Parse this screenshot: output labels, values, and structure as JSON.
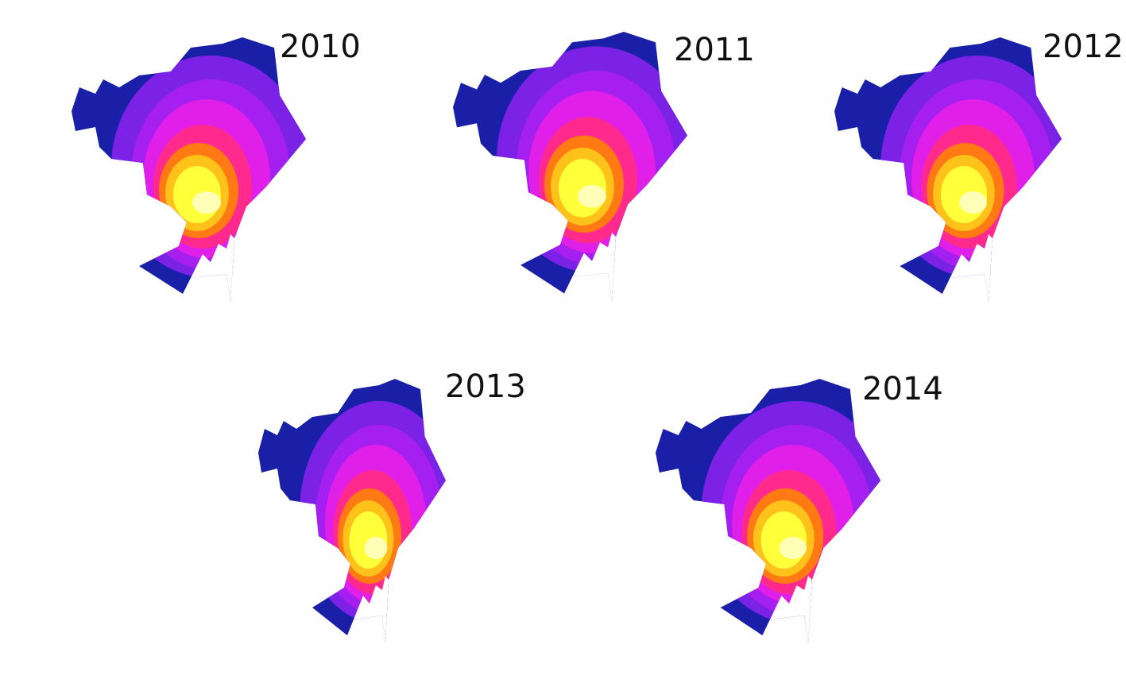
{
  "maps": [
    {
      "year": "2010"
    },
    {
      "year": "2011"
    },
    {
      "year": "2012"
    },
    {
      "year": "2013"
    },
    {
      "year": "2014"
    }
  ]
}
